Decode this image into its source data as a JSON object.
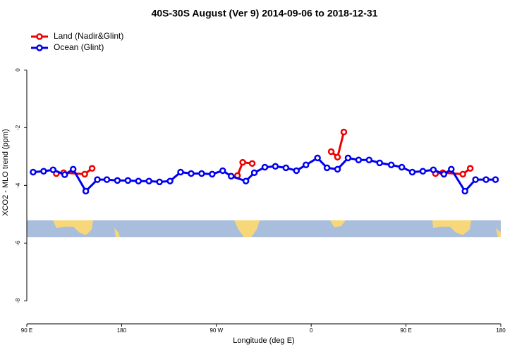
{
  "chart_data": {
    "type": "line",
    "title": "40S-30S August (Ver 9)   2014-09-06 to 2018-12-31",
    "x_label": "Longitude (deg E)",
    "y_label": "XCO2 - MLO trend (ppm)",
    "xlim": [
      90,
      540
    ],
    "ylim": [
      -8.8,
      1.5
    ],
    "xticks": [
      {
        "value": 90,
        "label": "90 E"
      },
      180,
      {
        "value": 270,
        "label": "90 W"
      },
      {
        "value": 360,
        "label": "0"
      },
      {
        "value": 450,
        "label": "90 E"
      },
      {
        "value": 540,
        "label": "180"
      }
    ],
    "yticks": [
      0,
      -2,
      -4,
      -6,
      -8
    ],
    "legend": "top-left",
    "series": [
      {
        "name": "Land (Nadir&Glint)",
        "color": "#ee0000",
        "x": [
          118,
          125,
          145,
          152,
          null,
          290,
          295,
          304,
          null,
          379,
          385,
          391,
          null,
          478,
          485,
          504,
          511
        ],
        "values": [
          -3.59,
          -3.56,
          -3.61,
          -3.41,
          null,
          -3.66,
          -3.2,
          -3.24,
          null,
          -2.83,
          -3.02,
          -2.15,
          null,
          -3.59,
          -3.56,
          -3.61,
          -3.41
        ]
      },
      {
        "name": "Ocean (Glint)",
        "color": "#0000ee",
        "x": [
          96,
          106,
          115,
          126,
          134,
          146,
          157,
          166,
          176,
          186,
          196,
          206,
          216,
          226,
          236,
          246,
          256,
          266,
          276,
          284,
          298,
          306,
          316,
          326,
          336,
          346,
          355,
          366,
          375,
          385,
          395,
          405,
          415,
          425,
          436,
          446,
          456,
          466,
          476,
          486,
          493,
          506,
          516,
          526,
          535
        ],
        "values": [
          -3.54,
          -3.51,
          -3.46,
          -3.63,
          -3.44,
          -4.2,
          -3.8,
          -3.8,
          -3.83,
          -3.83,
          -3.85,
          -3.85,
          -3.88,
          -3.85,
          -3.54,
          -3.59,
          -3.59,
          -3.61,
          -3.49,
          -3.68,
          -3.85,
          -3.56,
          -3.37,
          -3.34,
          -3.39,
          -3.49,
          -3.29,
          -3.05,
          -3.39,
          -3.44,
          -3.05,
          -3.12,
          -3.12,
          -3.22,
          -3.29,
          -3.37,
          -3.54,
          -3.51,
          -3.46,
          -3.61,
          -3.44,
          -4.2,
          -3.8,
          -3.8,
          -3.8
        ]
      }
    ]
  }
}
